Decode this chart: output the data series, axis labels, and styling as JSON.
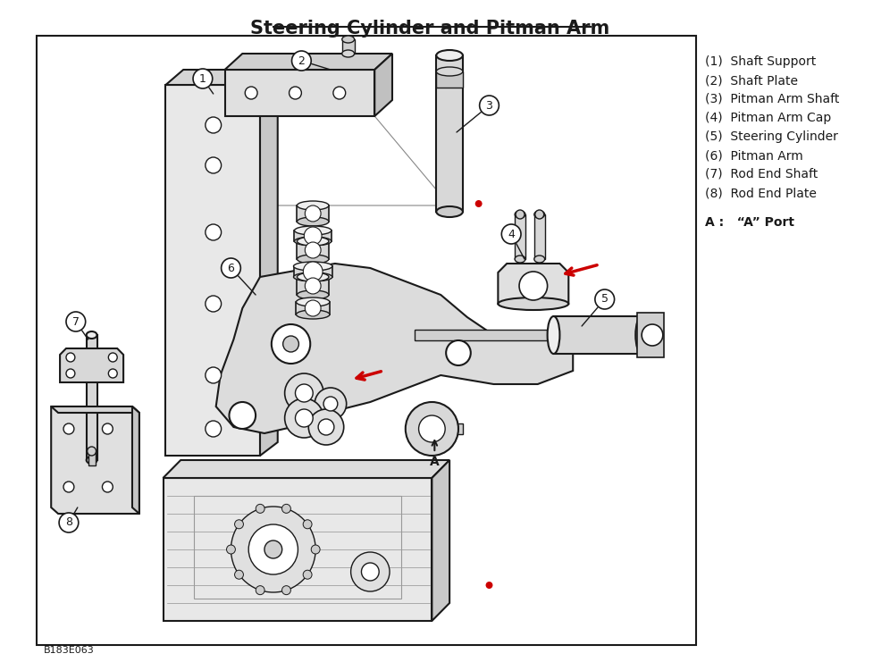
{
  "title": "Steering Cylinder and Pitman Arm",
  "bg_color": "#ffffff",
  "border_color": "#222222",
  "parts_list": [
    "(1)  Shaft Support",
    "(2)  Shaft Plate",
    "(3)  Pitman Arm Shaft",
    "(4)  Pitman Arm Cap",
    "(5)  Steering Cylinder",
    "(6)  Pitman Arm",
    "(7)  Rod End Shaft",
    "(8)  Rod End Plate"
  ],
  "port_label": "A :   “A” Port",
  "ref_code": "B183E063",
  "title_fontsize": 15,
  "parts_fontsize": 10,
  "port_fontsize": 10,
  "red_color": "#cc0000",
  "line_color": "#1a1a1a",
  "fill_color": "#d8d8d8",
  "dark_fill": "#888888",
  "light_fill": "#eeeeee"
}
